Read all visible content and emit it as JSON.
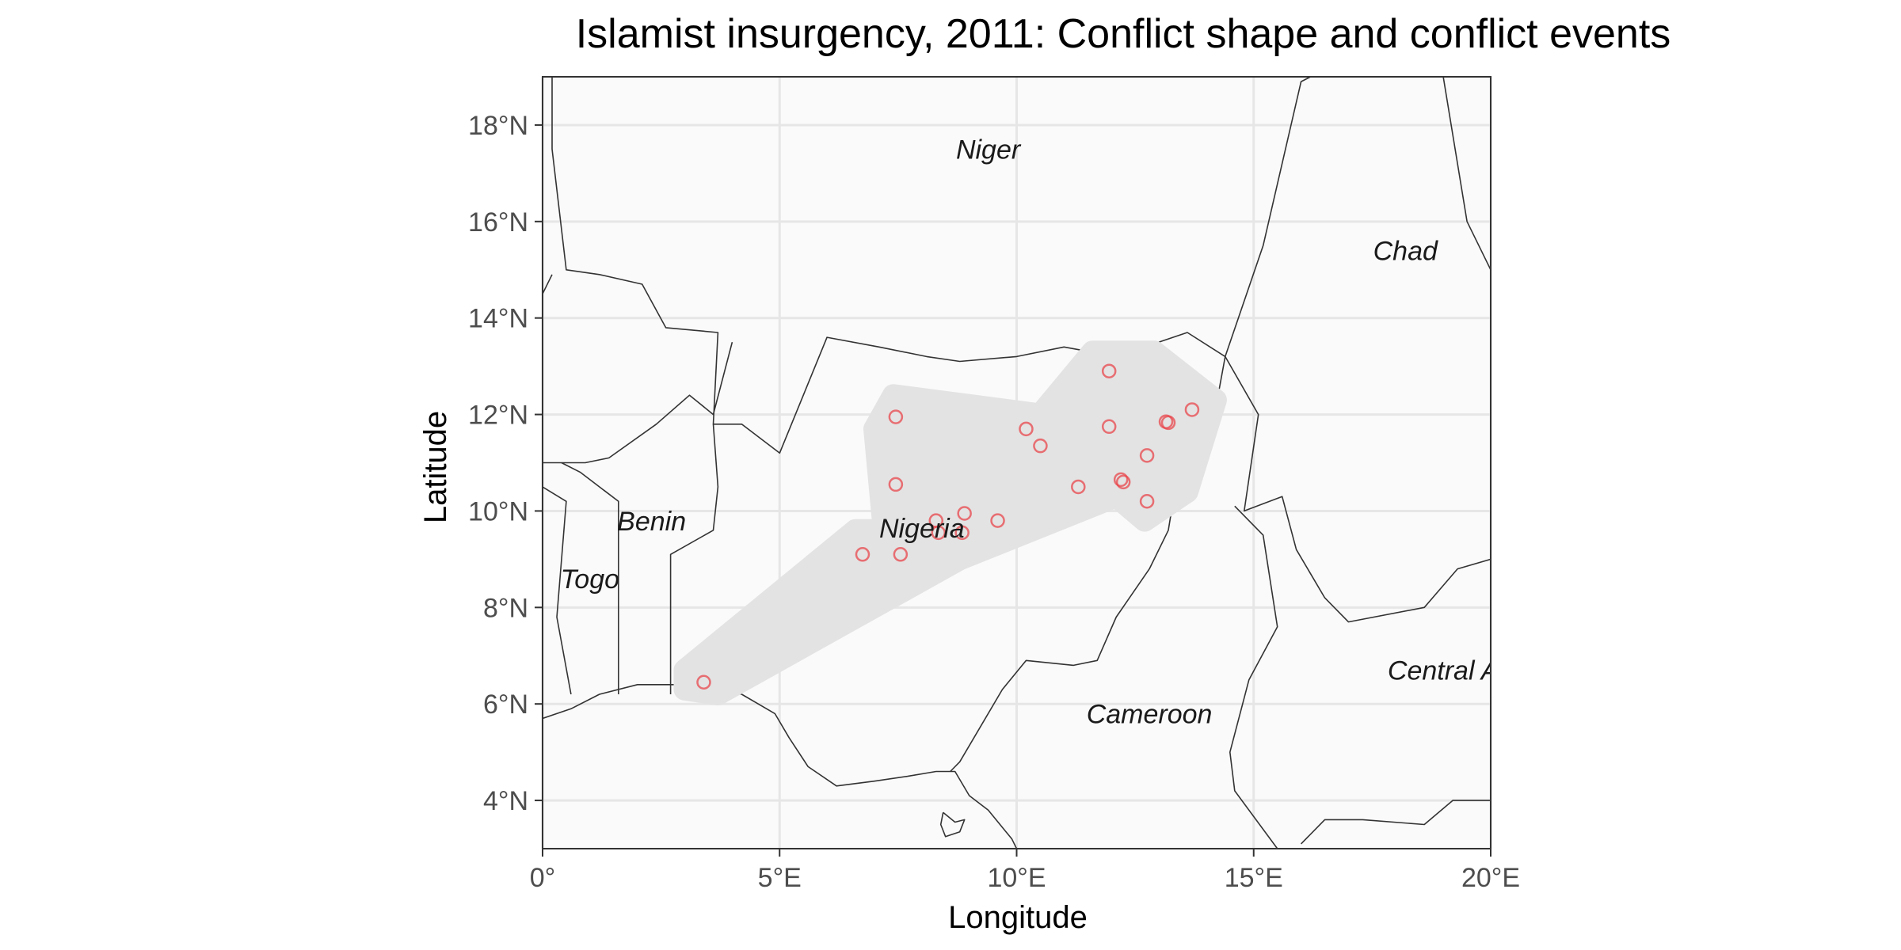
{
  "title": "Islamist insurgency, 2011: Conflict shape and conflict events",
  "x_axis": {
    "label": "Longitude",
    "ticks": [
      {
        "value": 0,
        "label": "0°"
      },
      {
        "value": 5,
        "label": "5°E"
      },
      {
        "value": 10,
        "label": "10°E"
      },
      {
        "value": 15,
        "label": "15°E"
      },
      {
        "value": 20,
        "label": "20°E"
      }
    ]
  },
  "y_axis": {
    "label": "Latitude",
    "ticks": [
      {
        "value": 4,
        "label": "4°N"
      },
      {
        "value": 6,
        "label": "6°N"
      },
      {
        "value": 8,
        "label": "8°N"
      },
      {
        "value": 10,
        "label": "10°N"
      },
      {
        "value": 12,
        "label": "12°N"
      },
      {
        "value": 14,
        "label": "14°N"
      },
      {
        "value": 16,
        "label": "16°N"
      },
      {
        "value": 18,
        "label": "18°N"
      }
    ]
  },
  "extent": {
    "lon": [
      0,
      20
    ],
    "lat": [
      3,
      19
    ]
  },
  "country_labels": [
    {
      "name": "Niger",
      "lon": 9.4,
      "lat": 17.3
    },
    {
      "name": "Chad",
      "lon": 18.2,
      "lat": 15.2
    },
    {
      "name": "Benin",
      "lon": 2.3,
      "lat": 9.6
    },
    {
      "name": "Togo",
      "lon": 1.0,
      "lat": 8.4
    },
    {
      "name": "Nigeria",
      "lon": 8.0,
      "lat": 9.45
    },
    {
      "name": "Cameroon",
      "lon": 12.8,
      "lat": 5.6
    },
    {
      "name": "Central A",
      "lon": 19.0,
      "lat": 6.5
    }
  ],
  "colors": {
    "panel_background": "#fafafa",
    "grid": "#e6e6e6",
    "conflict_shape": "#e3e3e3",
    "event_point": "#e8474c",
    "border": "#333333"
  },
  "chart_data": {
    "type": "scatter",
    "title": "Islamist insurgency, 2011: Conflict shape and conflict events",
    "xlabel": "Longitude",
    "ylabel": "Latitude",
    "xlim": [
      0,
      20
    ],
    "ylim": [
      3,
      19
    ],
    "grid": true,
    "conflict_shape": [
      [
        3.0,
        6.3
      ],
      [
        3.7,
        6.2
      ],
      [
        8.8,
        9.0
      ],
      [
        12.1,
        10.3
      ],
      [
        12.7,
        9.8
      ],
      [
        13.6,
        10.4
      ],
      [
        14.2,
        12.3
      ],
      [
        12.9,
        13.3
      ],
      [
        11.6,
        13.3
      ],
      [
        10.5,
        12.0
      ],
      [
        7.4,
        12.4
      ],
      [
        7.0,
        11.7
      ],
      [
        7.2,
        9.6
      ],
      [
        6.6,
        9.6
      ],
      [
        3.0,
        6.7
      ]
    ],
    "events": [
      {
        "lon": 3.4,
        "lat": 6.45
      },
      {
        "lon": 6.75,
        "lat": 9.1
      },
      {
        "lon": 7.55,
        "lat": 9.1
      },
      {
        "lon": 7.45,
        "lat": 10.55
      },
      {
        "lon": 7.45,
        "lat": 11.95
      },
      {
        "lon": 8.3,
        "lat": 9.8
      },
      {
        "lon": 8.35,
        "lat": 9.55
      },
      {
        "lon": 8.9,
        "lat": 9.95
      },
      {
        "lon": 8.85,
        "lat": 9.55
      },
      {
        "lon": 9.6,
        "lat": 9.8
      },
      {
        "lon": 10.2,
        "lat": 11.7
      },
      {
        "lon": 10.5,
        "lat": 11.35
      },
      {
        "lon": 11.3,
        "lat": 10.5
      },
      {
        "lon": 11.95,
        "lat": 12.9
      },
      {
        "lon": 11.95,
        "lat": 11.75
      },
      {
        "lon": 12.2,
        "lat": 10.65
      },
      {
        "lon": 12.25,
        "lat": 10.6
      },
      {
        "lon": 12.75,
        "lat": 11.15
      },
      {
        "lon": 12.75,
        "lat": 10.2
      },
      {
        "lon": 13.15,
        "lat": 11.85
      },
      {
        "lon": 13.2,
        "lat": 11.83
      },
      {
        "lon": 13.7,
        "lat": 12.1
      }
    ],
    "borders": [
      [
        [
          0.2,
          19.0
        ],
        [
          0.2,
          17.5
        ],
        [
          0.5,
          15.0
        ],
        [
          1.2,
          14.9
        ],
        [
          2.1,
          14.7
        ],
        [
          2.6,
          13.8
        ],
        [
          3.7,
          13.7
        ],
        [
          3.6,
          11.8
        ],
        [
          4.2,
          11.8
        ],
        [
          5.0,
          11.2
        ],
        [
          6.0,
          13.6
        ],
        [
          7.1,
          13.4
        ],
        [
          8.1,
          13.2
        ],
        [
          8.8,
          13.1
        ],
        [
          10.0,
          13.2
        ],
        [
          11.0,
          13.4
        ],
        [
          12.1,
          13.2
        ],
        [
          13.6,
          13.7
        ],
        [
          14.4,
          13.2
        ],
        [
          15.2,
          15.5
        ],
        [
          16.0,
          18.9
        ],
        [
          16.2,
          19.0
        ]
      ],
      [
        [
          0.2,
          14.9
        ],
        [
          0.0,
          14.5
        ]
      ],
      [
        [
          4.0,
          13.5
        ],
        [
          3.6,
          12.0
        ],
        [
          3.1,
          12.4
        ],
        [
          2.4,
          11.8
        ],
        [
          1.4,
          11.1
        ],
        [
          0.9,
          11.0
        ],
        [
          0.0,
          11.0
        ]
      ],
      [
        [
          3.6,
          11.8
        ],
        [
          3.7,
          10.5
        ],
        [
          3.6,
          9.6
        ],
        [
          2.7,
          9.1
        ],
        [
          2.7,
          6.2
        ]
      ],
      [
        [
          1.6,
          6.2
        ],
        [
          1.6,
          9.0
        ],
        [
          1.6,
          10.2
        ],
        [
          0.8,
          10.8
        ],
        [
          0.4,
          11.0
        ]
      ],
      [
        [
          0.0,
          10.5
        ],
        [
          0.5,
          10.2
        ],
        [
          0.3,
          7.8
        ],
        [
          0.6,
          6.2
        ]
      ],
      [
        [
          14.4,
          13.2
        ],
        [
          14.1,
          11.6
        ],
        [
          13.3,
          10.2
        ],
        [
          13.2,
          9.6
        ],
        [
          12.8,
          8.8
        ],
        [
          12.1,
          7.8
        ],
        [
          11.7,
          6.9
        ],
        [
          11.2,
          6.8
        ],
        [
          10.2,
          6.9
        ],
        [
          9.7,
          6.3
        ],
        [
          8.8,
          4.8
        ],
        [
          8.6,
          4.6
        ]
      ],
      [
        [
          14.4,
          13.2
        ],
        [
          15.1,
          12.0
        ],
        [
          14.8,
          10.0
        ],
        [
          15.6,
          10.3
        ],
        [
          15.9,
          9.2
        ],
        [
          16.5,
          8.2
        ],
        [
          17.0,
          7.7
        ],
        [
          18.6,
          8.0
        ],
        [
          19.3,
          8.8
        ],
        [
          20.0,
          9.0
        ]
      ],
      [
        [
          14.6,
          10.1
        ],
        [
          15.2,
          9.5
        ],
        [
          15.5,
          7.6
        ],
        [
          14.9,
          6.5
        ],
        [
          14.5,
          5.0
        ],
        [
          14.6,
          4.2
        ],
        [
          15.5,
          3.0
        ]
      ],
      [
        [
          16.0,
          3.1
        ],
        [
          16.5,
          3.6
        ],
        [
          17.3,
          3.6
        ],
        [
          18.6,
          3.5
        ],
        [
          19.2,
          4.0
        ],
        [
          20.0,
          4.0
        ]
      ],
      [
        [
          19.0,
          19.0
        ],
        [
          19.5,
          16.0
        ],
        [
          20.0,
          15.0
        ]
      ]
    ],
    "coastline": [
      [
        0.0,
        5.7
      ],
      [
        0.6,
        5.9
      ],
      [
        1.2,
        6.2
      ],
      [
        2.0,
        6.4
      ],
      [
        3.0,
        6.4
      ],
      [
        4.2,
        6.2
      ],
      [
        4.9,
        5.8
      ],
      [
        5.2,
        5.3
      ],
      [
        5.6,
        4.7
      ],
      [
        6.2,
        4.3
      ],
      [
        7.0,
        4.4
      ],
      [
        7.7,
        4.5
      ],
      [
        8.3,
        4.6
      ],
      [
        8.7,
        4.6
      ],
      [
        9.0,
        4.1
      ],
      [
        9.4,
        3.8
      ],
      [
        9.9,
        3.2
      ],
      [
        10.0,
        3.0
      ]
    ]
  }
}
